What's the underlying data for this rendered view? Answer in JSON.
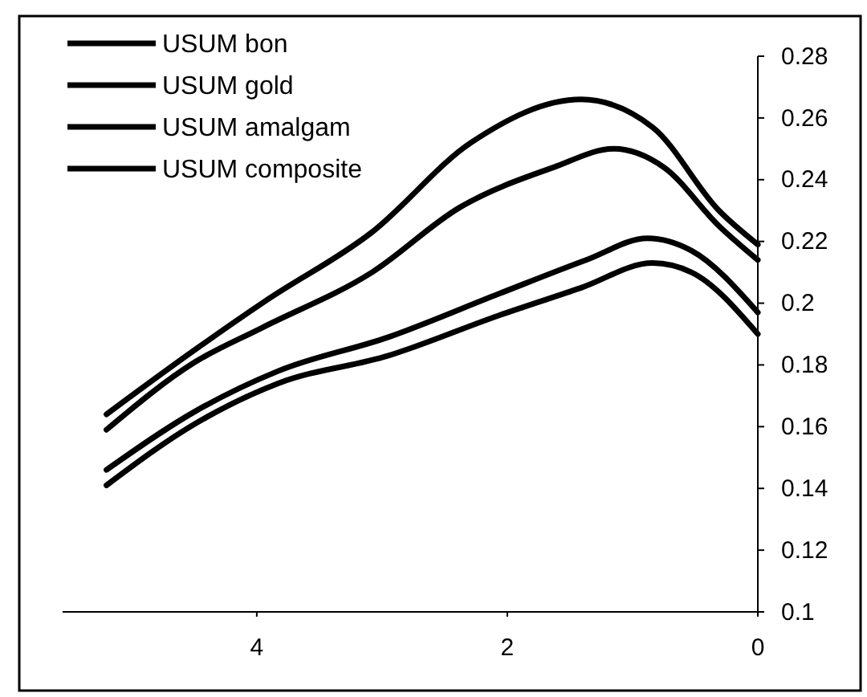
{
  "chart_data": {
    "type": "line",
    "x": [
      5.2,
      4.49,
      3.92,
      3.08,
      2.29,
      1.41,
      0.84,
      0.31,
      0
    ],
    "series": [
      {
        "name": "USUM bon",
        "color": "#000000",
        "values": [
          0.164,
          0.185,
          0.201,
          0.223,
          0.252,
          0.266,
          0.257,
          0.23,
          0.219
        ]
      },
      {
        "name": "USUM gold",
        "color": "#000000",
        "x": [
          5.2,
          4.49,
          3.96,
          3.08,
          2.38,
          1.63,
          1.15,
          0.75,
          0.31,
          0
        ],
        "values": [
          0.159,
          0.181,
          0.192,
          0.21,
          0.231,
          0.244,
          0.25,
          0.244,
          0.225,
          0.214
        ]
      },
      {
        "name": "USUM amalgam",
        "color": "#000000",
        "x": [
          5.2,
          4.49,
          3.83,
          2.95,
          2.07,
          1.37,
          0.88,
          0.53,
          0
        ],
        "values": [
          0.146,
          0.165,
          0.178,
          0.189,
          0.203,
          0.214,
          0.221,
          0.217,
          0.197
        ]
      },
      {
        "name": "USUM composite",
        "color": "#000000",
        "x": [
          5.2,
          4.49,
          3.83,
          2.95,
          2.07,
          1.41,
          0.84,
          0.53,
          0
        ],
        "values": [
          0.141,
          0.161,
          0.174,
          0.183,
          0.196,
          0.205,
          0.213,
          0.21,
          0.19
        ]
      }
    ],
    "xlim": [
      5.55,
      0
    ],
    "xticks": [
      4,
      2,
      0
    ],
    "ylim": [
      0.1,
      0.28
    ],
    "yticks": [
      0.1,
      0.12,
      0.14,
      0.16,
      0.18,
      0.2,
      0.22,
      0.24,
      0.26,
      0.28
    ],
    "grid": false,
    "legend": "top left",
    "marker": "none",
    "line_style": "solid"
  }
}
